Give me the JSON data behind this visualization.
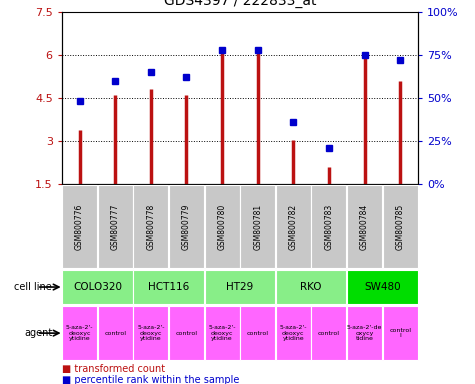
{
  "title": "GDS4397 / 222833_at",
  "samples": [
    "GSM800776",
    "GSM800777",
    "GSM800778",
    "GSM800779",
    "GSM800780",
    "GSM800781",
    "GSM800782",
    "GSM800783",
    "GSM800784",
    "GSM800785"
  ],
  "red_values": [
    3.4,
    4.6,
    4.8,
    4.6,
    6.15,
    6.2,
    3.05,
    2.1,
    6.05,
    5.1
  ],
  "blue_values": [
    0.48,
    0.6,
    0.65,
    0.62,
    0.78,
    0.78,
    0.36,
    0.21,
    0.75,
    0.72
  ],
  "cell_lines": [
    {
      "name": "COLO320",
      "span": [
        0,
        2
      ],
      "color": "#88EE88"
    },
    {
      "name": "HCT116",
      "span": [
        2,
        4
      ],
      "color": "#88EE88"
    },
    {
      "name": "HT29",
      "span": [
        4,
        6
      ],
      "color": "#88EE88"
    },
    {
      "name": "RKO",
      "span": [
        6,
        8
      ],
      "color": "#88EE88"
    },
    {
      "name": "SW480",
      "span": [
        8,
        10
      ],
      "color": "#00DD00"
    }
  ],
  "agents": [
    {
      "name": "5-aza-2'-\ndeoxyc\nytidine",
      "span": [
        0,
        1
      ]
    },
    {
      "name": "control",
      "span": [
        1,
        2
      ]
    },
    {
      "name": "5-aza-2'-\ndeoxyc\nytidine",
      "span": [
        2,
        3
      ]
    },
    {
      "name": "control",
      "span": [
        3,
        4
      ]
    },
    {
      "name": "5-aza-2'-\ndeoxyc\nytidine",
      "span": [
        4,
        5
      ]
    },
    {
      "name": "control",
      "span": [
        5,
        6
      ]
    },
    {
      "name": "5-aza-2'-\ndeoxyc\nytidine",
      "span": [
        6,
        7
      ]
    },
    {
      "name": "control",
      "span": [
        7,
        8
      ]
    },
    {
      "name": "5-aza-2'-de\noxycy\ntidine",
      "span": [
        8,
        9
      ]
    },
    {
      "name": "control\nl",
      "span": [
        9,
        10
      ]
    }
  ],
  "ylim": [
    1.5,
    7.5
  ],
  "yticks": [
    1.5,
    3.0,
    4.5,
    6.0,
    7.5
  ],
  "ytick_labels": [
    "1.5",
    "3",
    "4.5",
    "6",
    "7.5"
  ],
  "y2ticks": [
    0.0,
    0.25,
    0.5,
    0.75,
    1.0
  ],
  "y2tick_labels": [
    "0%",
    "25%",
    "50%",
    "75%",
    "100%"
  ],
  "red_color": "#BB1111",
  "blue_color": "#0000CC",
  "sample_label_bg": "#C8C8C8",
  "agent_color": "#FF66FF",
  "cell_line_light": "#88EE88",
  "cell_line_bright": "#00DD00"
}
